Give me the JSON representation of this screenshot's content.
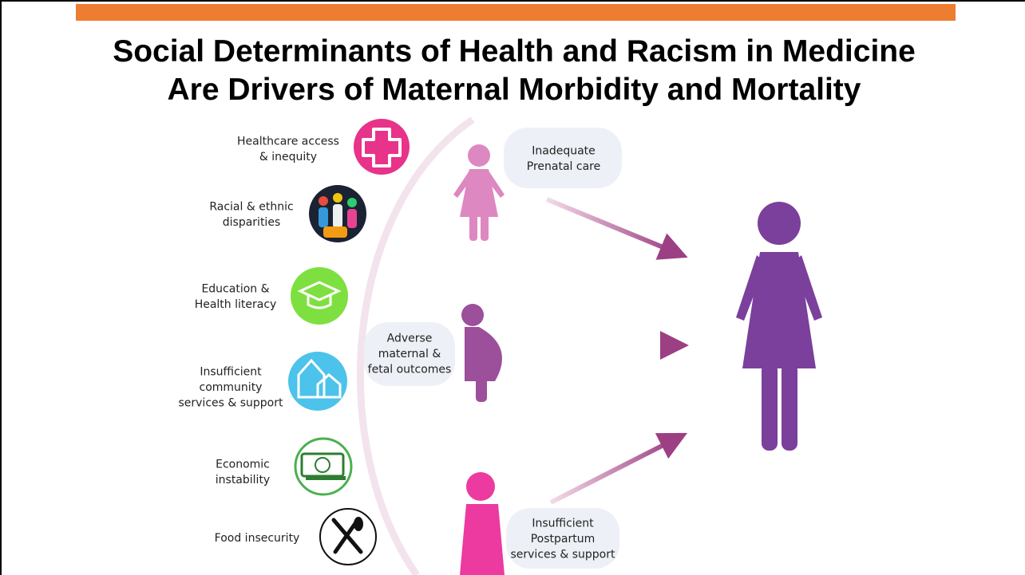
{
  "header": {
    "title_lines": [
      "Social Determinants of Health and Racism in Medicine",
      "Are Drivers of Maternal Morbidity and Mortality"
    ]
  },
  "determinants": [
    {
      "lines": [
        "Healthcare access",
        "& inequity"
      ]
    },
    {
      "lines": [
        "Racial & ethnic",
        "disparities"
      ]
    },
    {
      "lines": [
        "Education &",
        "Health literacy"
      ]
    },
    {
      "lines": [
        "Insufficient",
        "community",
        "services & support"
      ]
    },
    {
      "lines": [
        "Economic",
        "instability"
      ]
    },
    {
      "lines": [
        "Food insecurity"
      ]
    }
  ],
  "outcomes": [
    {
      "lines": [
        "Inadequate",
        "Prenatal care"
      ]
    },
    {
      "lines": [
        "Adverse",
        "maternal &",
        "fetal outcomes"
      ]
    },
    {
      "lines": [
        "Insufficient",
        "Postpartum",
        "services & support"
      ]
    }
  ]
}
